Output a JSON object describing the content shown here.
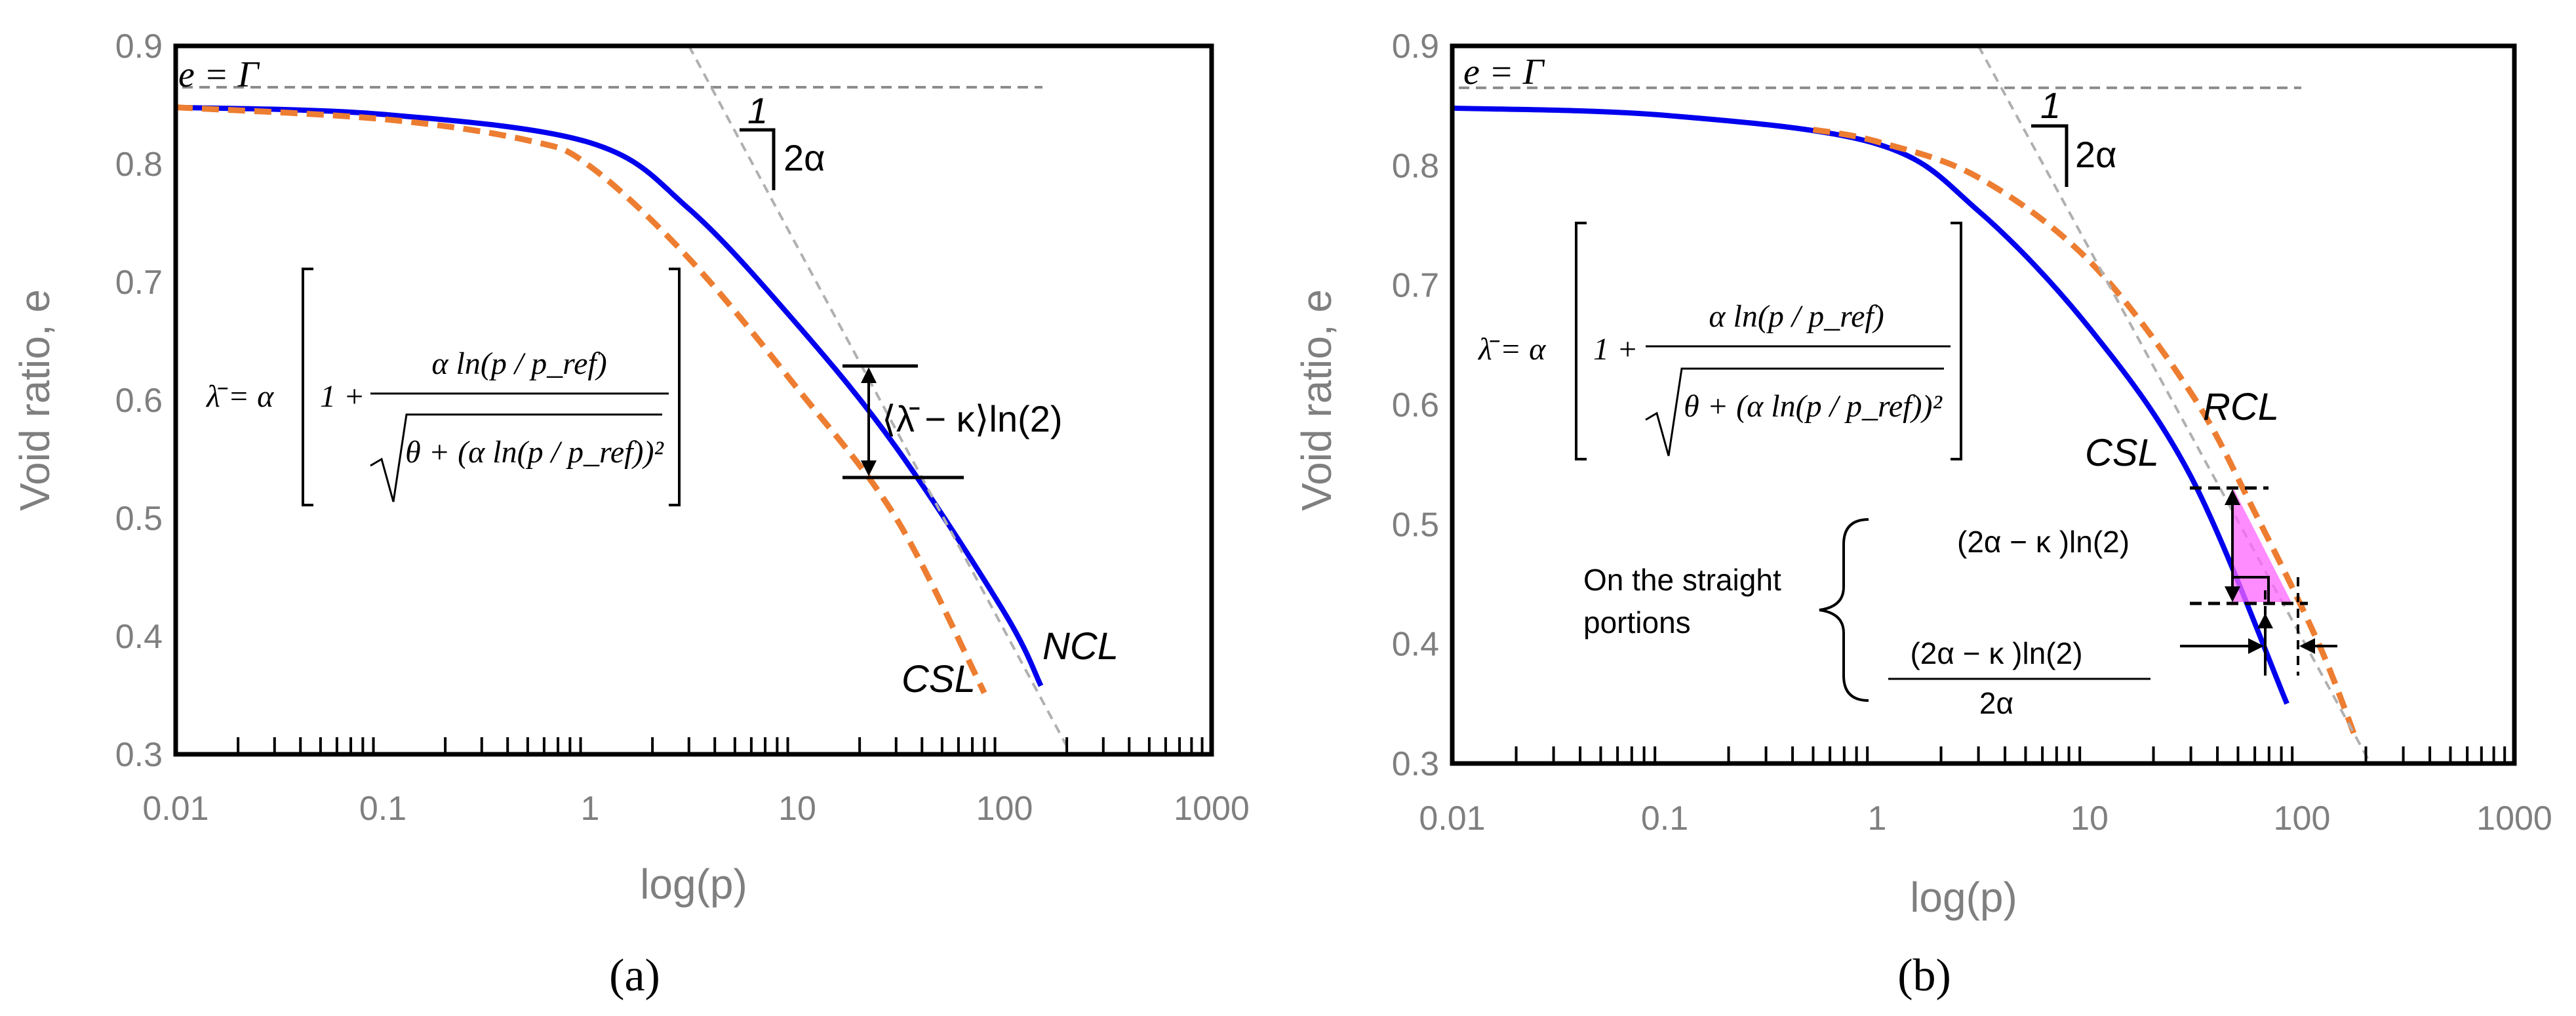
{
  "chart_data": [
    {
      "type": "line",
      "panel_label": "(a)",
      "title": "",
      "xlabel": "log(p)",
      "ylabel": "Void ratio, e",
      "xscale": "log",
      "xlim": [
        0.01,
        1000
      ],
      "ylim": [
        0.3,
        0.9
      ],
      "xticks": [
        "0.01",
        "0.1",
        "1",
        "10",
        "100",
        "1000"
      ],
      "yticks": [
        "0.3",
        "0.4",
        "0.5",
        "0.6",
        "0.7",
        "0.8",
        "0.9"
      ],
      "gamma_label": "e = Γ",
      "gamma_value": 0.865,
      "slope_run": "1",
      "slope_rise": "2α",
      "formula_lhs": "λ̄ = α",
      "formula_num": "α ln(p / p_ref)",
      "formula_den": "θ + (α ln(p / p_ref))²",
      "gap_label": "⟨λ̄ − κ⟩ln(2)",
      "series": [
        {
          "name": "NCL",
          "color": "#0000ee",
          "style": "solid",
          "x": [
            0.01,
            0.1,
            1,
            3,
            10,
            30,
            100,
            150
          ],
          "y": [
            0.848,
            0.842,
            0.818,
            0.762,
            0.664,
            0.56,
            0.42,
            0.358
          ]
        },
        {
          "name": "CSL",
          "color": "#ed7d31",
          "style": "dashed",
          "x": [
            0.01,
            0.1,
            0.5,
            1,
            3,
            10,
            30,
            80
          ],
          "y": [
            0.848,
            0.838,
            0.82,
            0.798,
            0.72,
            0.61,
            0.5,
            0.352
          ]
        },
        {
          "name": "asymptote",
          "color": "#b0b0b0",
          "style": "dashed",
          "x": [
            3,
            210
          ],
          "y": [
            0.9,
            0.3
          ]
        }
      ]
    },
    {
      "type": "line",
      "panel_label": "(b)",
      "title": "",
      "xlabel": "log(p)",
      "ylabel": "Void ratio, e",
      "xscale": "log",
      "xlim": [
        0.01,
        1000
      ],
      "ylim": [
        0.3,
        0.9
      ],
      "xticks": [
        "0.01",
        "0.1",
        "1",
        "10",
        "100",
        "1000"
      ],
      "yticks": [
        "0.3",
        "0.4",
        "0.5",
        "0.6",
        "0.7",
        "0.8",
        "0.9"
      ],
      "gamma_label": "e = Γ",
      "gamma_value": 0.865,
      "slope_run": "1",
      "slope_rise": "2α",
      "formula_lhs": "λ̄ = α",
      "formula_num": "α ln(p / p_ref)",
      "formula_den": "θ + (α ln(p / p_ref))²",
      "brace_text": [
        "On the straight",
        "portions"
      ],
      "gap_label": "(2α − κ )ln(2)",
      "shift_num": "(2α − κ )ln(2)",
      "shift_den": "2α",
      "series": [
        {
          "name": "CSL",
          "color": "#0000ee",
          "style": "solid",
          "x": [
            0.01,
            0.1,
            1,
            3,
            10,
            30,
            85
          ],
          "y": [
            0.848,
            0.842,
            0.818,
            0.762,
            0.664,
            0.54,
            0.35
          ]
        },
        {
          "name": "RCL",
          "color": "#ed7d31",
          "style": "dashed",
          "x": [
            0.5,
            1,
            3,
            10,
            30,
            60,
            120,
            180
          ],
          "y": [
            0.83,
            0.82,
            0.79,
            0.72,
            0.61,
            0.51,
            0.4,
            0.32
          ]
        },
        {
          "name": "asymptote",
          "color": "#b0b0b0",
          "style": "dashed",
          "x": [
            3,
            210
          ],
          "y": [
            0.9,
            0.3
          ]
        }
      ]
    }
  ]
}
